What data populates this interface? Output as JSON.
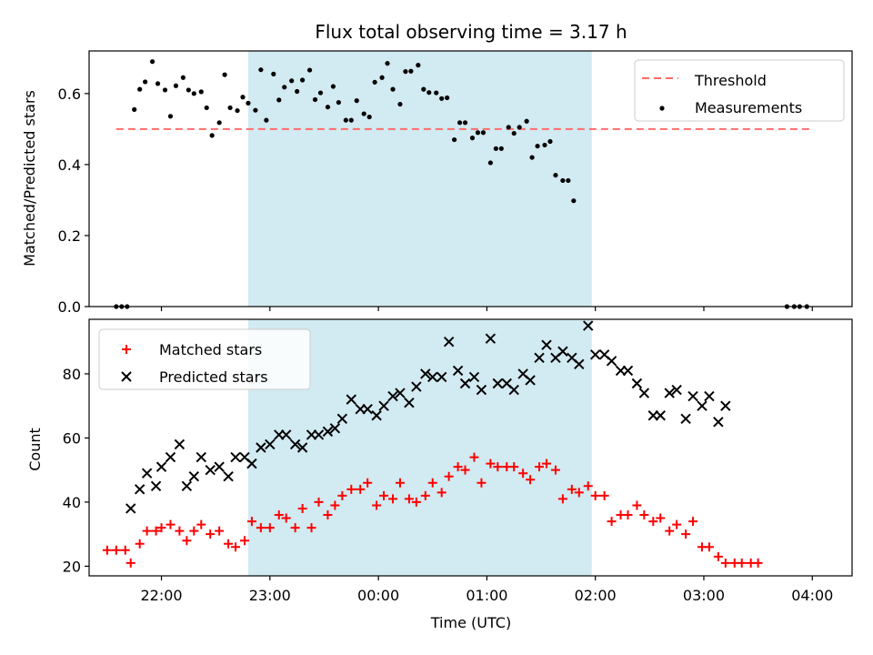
{
  "chart_data": [
    {
      "type": "scatter",
      "title": "Flux total observing time = 3.17 h",
      "xlabel": "",
      "ylabel": "Matched/Predicted stars",
      "ylim": [
        0,
        0.72
      ],
      "y_ticks": [
        "0.0",
        "0.2",
        "0.4",
        "0.6"
      ],
      "x_tick_labels_visible": false,
      "shaded_span": {
        "start": "22:48",
        "end": "01:58",
        "color": "#add8e6"
      },
      "threshold": {
        "name": "Threshold",
        "value": 0.5,
        "start": "21:35",
        "end": "03:59",
        "color": "#ff6b6b"
      },
      "legend_position": "upper right",
      "series": [
        {
          "name": "Measurements",
          "color": "#000000",
          "marker": "dot",
          "points": [
            [
              "21:35",
              0.0
            ],
            [
              "21:38",
              0.0
            ],
            [
              "21:41",
              0.0
            ],
            [
              "21:45",
              0.555
            ],
            [
              "21:48",
              0.612
            ],
            [
              "21:51",
              0.633
            ],
            [
              "21:55",
              0.69
            ],
            [
              "21:58",
              0.628
            ],
            [
              "22:02",
              0.61
            ],
            [
              "22:05",
              0.536
            ],
            [
              "22:08",
              0.622
            ],
            [
              "22:12",
              0.645
            ],
            [
              "22:15",
              0.61
            ],
            [
              "22:18",
              0.6
            ],
            [
              "22:22",
              0.605
            ],
            [
              "22:25",
              0.56
            ],
            [
              "22:28",
              0.482
            ],
            [
              "22:32",
              0.518
            ],
            [
              "22:35",
              0.653
            ],
            [
              "22:38",
              0.56
            ],
            [
              "22:42",
              0.552
            ],
            [
              "22:45",
              0.59
            ],
            [
              "22:48",
              0.573
            ],
            [
              "22:52",
              0.553
            ],
            [
              "22:55",
              0.667
            ],
            [
              "22:58",
              0.525
            ],
            [
              "23:02",
              0.655
            ],
            [
              "23:05",
              0.582
            ],
            [
              "23:08",
              0.618
            ],
            [
              "23:12",
              0.636
            ],
            [
              "23:15",
              0.606
            ],
            [
              "23:18",
              0.638
            ],
            [
              "23:22",
              0.666
            ],
            [
              "23:25",
              0.583
            ],
            [
              "23:28",
              0.602
            ],
            [
              "23:32",
              0.562
            ],
            [
              "23:35",
              0.62
            ],
            [
              "23:38",
              0.575
            ],
            [
              "23:42",
              0.525
            ],
            [
              "23:45",
              0.525
            ],
            [
              "23:48",
              0.58
            ],
            [
              "23:52",
              0.543
            ],
            [
              "23:55",
              0.534
            ],
            [
              "23:58",
              0.632
            ],
            [
              "00:02",
              0.645
            ],
            [
              "00:05",
              0.685
            ],
            [
              "00:08",
              0.612
            ],
            [
              "00:12",
              0.57
            ],
            [
              "00:15",
              0.662
            ],
            [
              "00:18",
              0.663
            ],
            [
              "00:22",
              0.68
            ],
            [
              "00:25",
              0.612
            ],
            [
              "00:28",
              0.603
            ],
            [
              "00:32",
              0.602
            ],
            [
              "00:35",
              0.586
            ],
            [
              "00:38",
              0.588
            ],
            [
              "00:42",
              0.47
            ],
            [
              "00:45",
              0.518
            ],
            [
              "00:48",
              0.518
            ],
            [
              "00:52",
              0.475
            ],
            [
              "00:55",
              0.49
            ],
            [
              "00:58",
              0.49
            ],
            [
              "01:02",
              0.405
            ],
            [
              "01:05",
              0.445
            ],
            [
              "01:08",
              0.445
            ],
            [
              "01:12",
              0.505
            ],
            [
              "01:15",
              0.488
            ],
            [
              "01:18",
              0.505
            ],
            [
              "01:22",
              0.522
            ],
            [
              "01:25",
              0.42
            ],
            [
              "01:28",
              0.452
            ],
            [
              "01:32",
              0.455
            ],
            [
              "01:35",
              0.465
            ],
            [
              "01:38",
              0.37
            ],
            [
              "01:42",
              0.355
            ],
            [
              "01:45",
              0.355
            ],
            [
              "01:48",
              0.298
            ],
            [
              "03:46",
              0.0
            ],
            [
              "03:50",
              0.0
            ],
            [
              "03:53",
              0.0
            ],
            [
              "03:57",
              0.0
            ]
          ]
        }
      ]
    },
    {
      "type": "scatter",
      "title": "",
      "xlabel": "Time (UTC)",
      "ylabel": "Count",
      "ylim": [
        17,
        97
      ],
      "y_ticks": [
        "20",
        "40",
        "60",
        "80"
      ],
      "x_ticks": [
        "22:00",
        "23:00",
        "00:00",
        "01:00",
        "02:00",
        "03:00",
        "04:00"
      ],
      "x_range": [
        "21:20",
        "04:22"
      ],
      "shaded_span": {
        "start": "22:48",
        "end": "01:58",
        "color": "#add8e6"
      },
      "legend_position": "upper left",
      "series": [
        {
          "name": "Matched stars",
          "color": "#ff0000",
          "marker": "plus",
          "points": [
            [
              "21:30",
              25
            ],
            [
              "21:35",
              25
            ],
            [
              "21:40",
              25
            ],
            [
              "21:43",
              21
            ],
            [
              "21:48",
              27
            ],
            [
              "21:52",
              31
            ],
            [
              "21:57",
              31
            ],
            [
              "22:00",
              32
            ],
            [
              "22:05",
              33
            ],
            [
              "22:10",
              31
            ],
            [
              "22:14",
              28
            ],
            [
              "22:18",
              31
            ],
            [
              "22:22",
              33
            ],
            [
              "22:27",
              30
            ],
            [
              "22:32",
              31
            ],
            [
              "22:37",
              27
            ],
            [
              "22:41",
              26
            ],
            [
              "22:46",
              28
            ],
            [
              "22:50",
              34
            ],
            [
              "22:55",
              32
            ],
            [
              "23:00",
              32
            ],
            [
              "23:05",
              36
            ],
            [
              "23:09",
              35
            ],
            [
              "23:14",
              32
            ],
            [
              "23:18",
              38
            ],
            [
              "23:23",
              32
            ],
            [
              "23:27",
              40
            ],
            [
              "23:32",
              36
            ],
            [
              "23:36",
              39
            ],
            [
              "23:40",
              42
            ],
            [
              "23:45",
              44
            ],
            [
              "23:50",
              44
            ],
            [
              "23:54",
              46
            ],
            [
              "23:59",
              39
            ],
            [
              "00:03",
              42
            ],
            [
              "00:08",
              41
            ],
            [
              "00:12",
              46
            ],
            [
              "00:17",
              41
            ],
            [
              "00:21",
              40
            ],
            [
              "00:26",
              42
            ],
            [
              "00:30",
              46
            ],
            [
              "00:35",
              43
            ],
            [
              "00:39",
              48
            ],
            [
              "00:44",
              51
            ],
            [
              "00:48",
              50
            ],
            [
              "00:53",
              54
            ],
            [
              "00:57",
              46
            ],
            [
              "01:02",
              52
            ],
            [
              "01:06",
              51
            ],
            [
              "01:11",
              51
            ],
            [
              "01:15",
              51
            ],
            [
              "01:20",
              49
            ],
            [
              "01:24",
              47
            ],
            [
              "01:29",
              51
            ],
            [
              "01:33",
              52
            ],
            [
              "01:38",
              50
            ],
            [
              "01:42",
              41
            ],
            [
              "01:47",
              44
            ],
            [
              "01:51",
              43
            ],
            [
              "01:56",
              45
            ],
            [
              "02:00",
              42
            ],
            [
              "02:05",
              42
            ],
            [
              "02:09",
              34
            ],
            [
              "02:14",
              36
            ],
            [
              "02:18",
              36
            ],
            [
              "02:23",
              39
            ],
            [
              "02:27",
              36
            ],
            [
              "02:32",
              34
            ],
            [
              "02:36",
              35
            ],
            [
              "02:41",
              31
            ],
            [
              "02:45",
              33
            ],
            [
              "02:50",
              30
            ],
            [
              "02:54",
              34
            ],
            [
              "02:59",
              26
            ],
            [
              "03:03",
              26
            ],
            [
              "03:08",
              23
            ],
            [
              "03:12",
              21
            ],
            [
              "03:17",
              21
            ],
            [
              "03:21",
              21
            ],
            [
              "03:26",
              21
            ],
            [
              "03:30",
              21
            ]
          ]
        },
        {
          "name": "Predicted stars",
          "color": "#000000",
          "marker": "x",
          "points": [
            [
              "21:43",
              38
            ],
            [
              "21:48",
              44
            ],
            [
              "21:52",
              49
            ],
            [
              "21:57",
              45
            ],
            [
              "22:00",
              51
            ],
            [
              "22:05",
              54
            ],
            [
              "22:10",
              58
            ],
            [
              "22:14",
              45
            ],
            [
              "22:18",
              48
            ],
            [
              "22:22",
              54
            ],
            [
              "22:27",
              50
            ],
            [
              "22:32",
              51
            ],
            [
              "22:37",
              48
            ],
            [
              "22:41",
              54
            ],
            [
              "22:46",
              54
            ],
            [
              "22:50",
              52
            ],
            [
              "22:55",
              57
            ],
            [
              "23:00",
              58
            ],
            [
              "23:05",
              61
            ],
            [
              "23:09",
              61
            ],
            [
              "23:14",
              58
            ],
            [
              "23:18",
              57
            ],
            [
              "23:23",
              61
            ],
            [
              "23:27",
              61
            ],
            [
              "23:32",
              62
            ],
            [
              "23:36",
              63
            ],
            [
              "23:40",
              66
            ],
            [
              "23:45",
              72
            ],
            [
              "23:50",
              69
            ],
            [
              "23:54",
              69
            ],
            [
              "23:59",
              67
            ],
            [
              "00:03",
              70
            ],
            [
              "00:08",
              73
            ],
            [
              "00:12",
              74
            ],
            [
              "00:17",
              71
            ],
            [
              "00:21",
              76
            ],
            [
              "00:26",
              80
            ],
            [
              "00:30",
              79
            ],
            [
              "00:35",
              79
            ],
            [
              "00:39",
              90
            ],
            [
              "00:44",
              81
            ],
            [
              "00:48",
              77
            ],
            [
              "00:53",
              79
            ],
            [
              "00:57",
              75
            ],
            [
              "01:02",
              91
            ],
            [
              "01:06",
              77
            ],
            [
              "01:11",
              77
            ],
            [
              "01:15",
              75
            ],
            [
              "01:20",
              80
            ],
            [
              "01:24",
              78
            ],
            [
              "01:29",
              85
            ],
            [
              "01:33",
              89
            ],
            [
              "01:38",
              85
            ],
            [
              "01:42",
              87
            ],
            [
              "01:47",
              85
            ],
            [
              "01:51",
              83
            ],
            [
              "01:56",
              95
            ],
            [
              "02:00",
              86
            ],
            [
              "02:05",
              86
            ],
            [
              "02:09",
              84
            ],
            [
              "02:14",
              81
            ],
            [
              "02:18",
              81
            ],
            [
              "02:23",
              77
            ],
            [
              "02:27",
              74
            ],
            [
              "02:32",
              67
            ],
            [
              "02:36",
              67
            ],
            [
              "02:41",
              74
            ],
            [
              "02:45",
              75
            ],
            [
              "02:50",
              66
            ],
            [
              "02:54",
              73
            ],
            [
              "02:59",
              70
            ],
            [
              "03:03",
              73
            ],
            [
              "03:08",
              65
            ],
            [
              "03:12",
              70
            ]
          ]
        }
      ]
    }
  ]
}
